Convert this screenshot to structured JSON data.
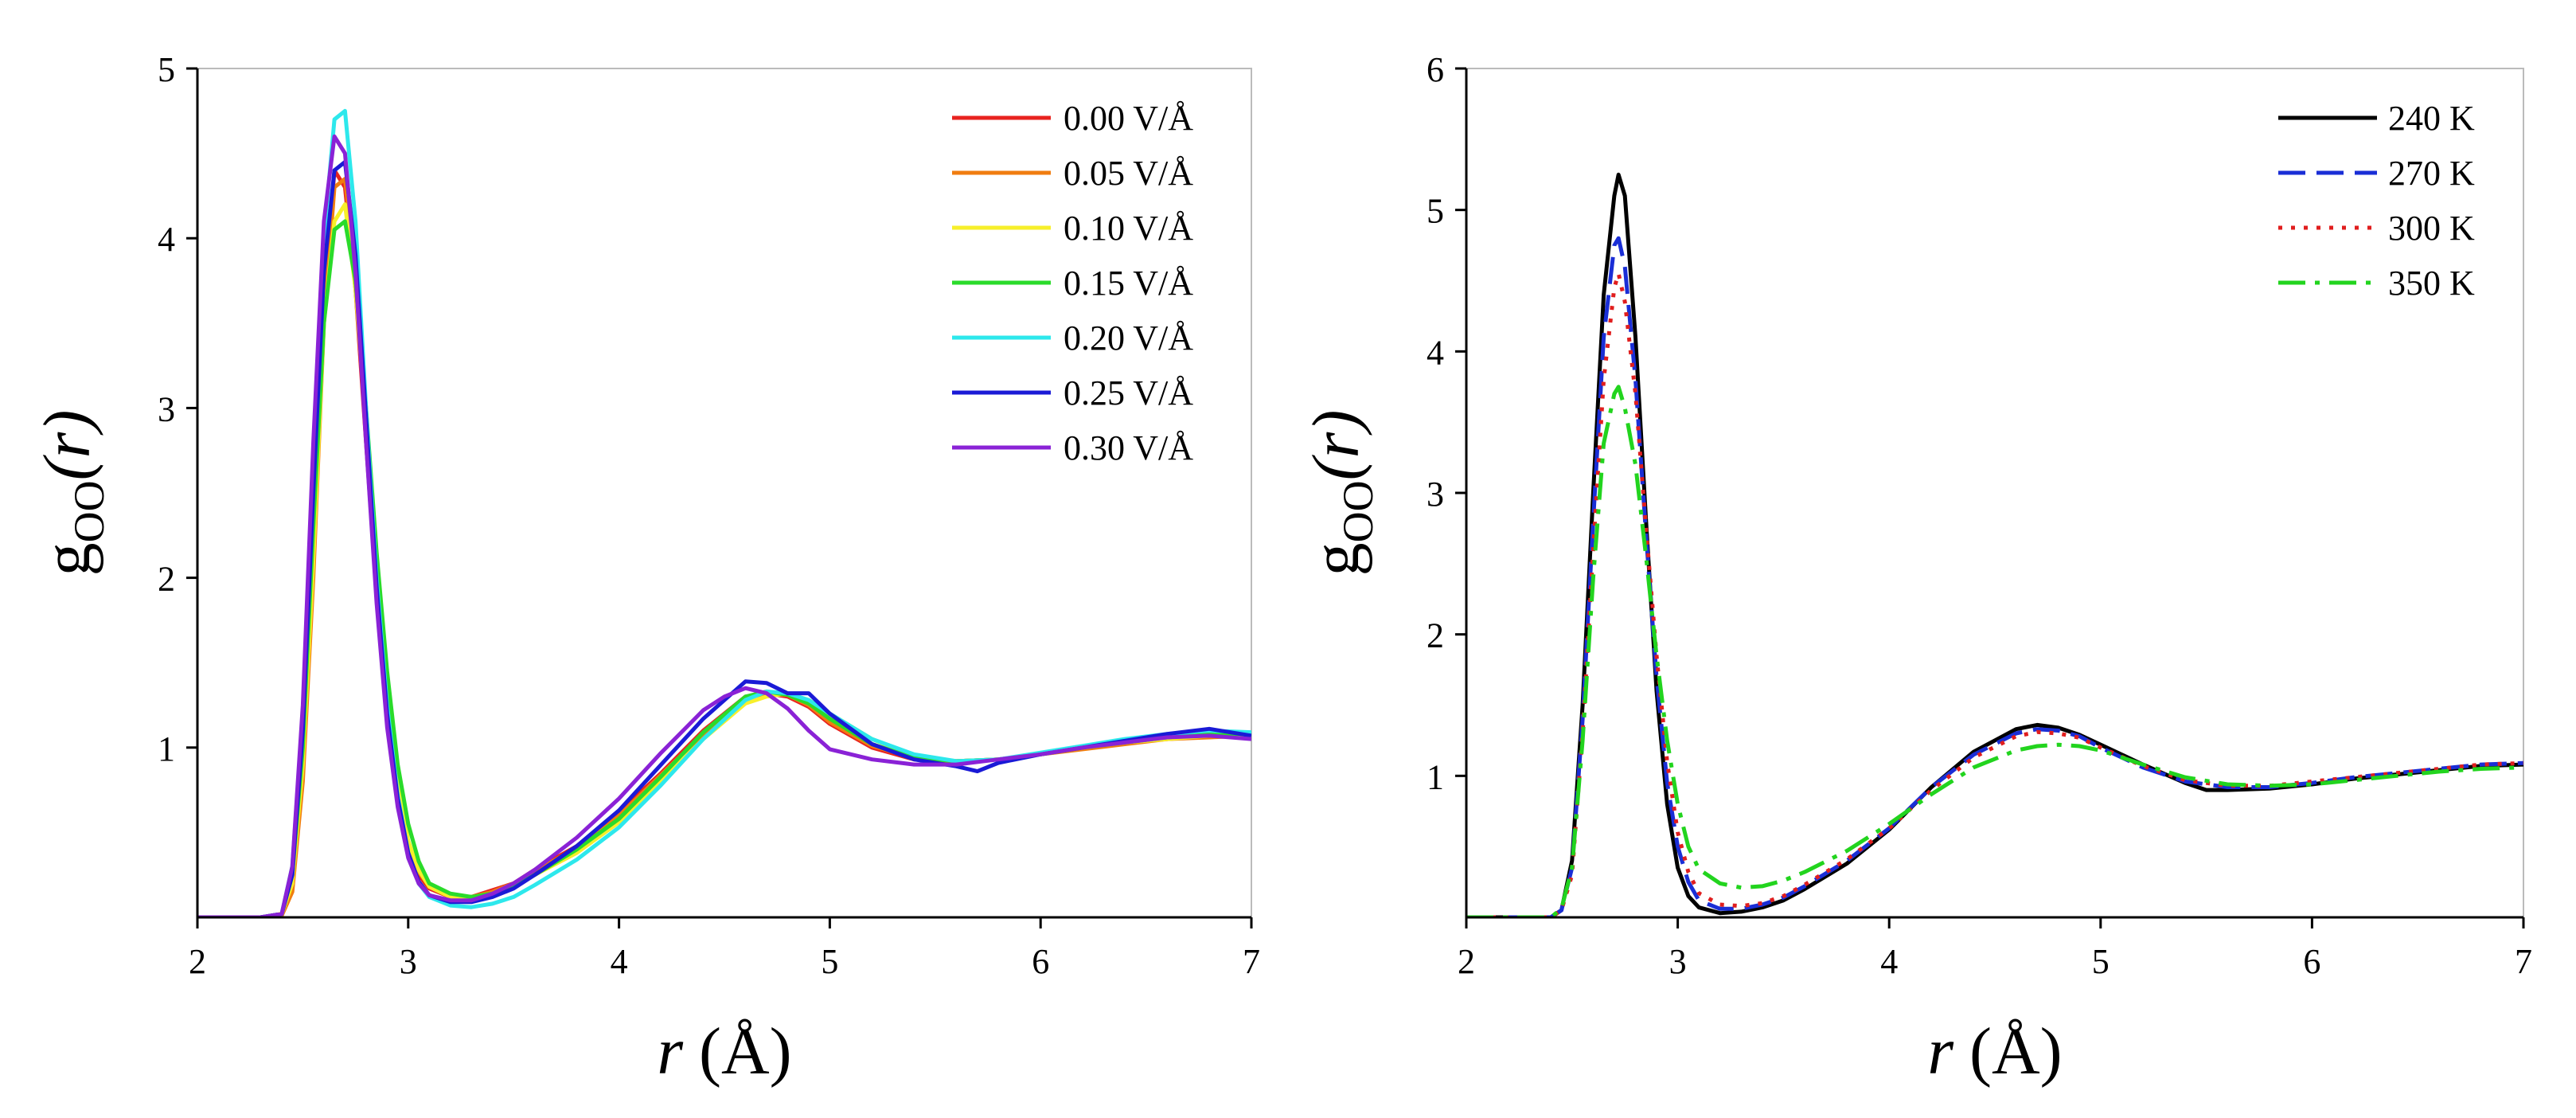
{
  "chart_data": [
    {
      "type": "line",
      "title": "",
      "xlabel": {
        "var": "r",
        "unit": "(Å)"
      },
      "ylabel": {
        "main": "g",
        "sub": "OO",
        "arg": "(r)"
      },
      "xlim": [
        2,
        7
      ],
      "ylim": [
        0,
        5
      ],
      "xticks": [
        2,
        3,
        4,
        5,
        6,
        7
      ],
      "yticks": [
        1,
        2,
        3,
        4,
        5
      ],
      "grid": false,
      "legend_position": "top-right",
      "series": [
        {
          "name": "0.00 V/Å",
          "color": "#e8231f",
          "dash": "solid",
          "x": [
            2.0,
            2.3,
            2.4,
            2.45,
            2.5,
            2.55,
            2.6,
            2.65,
            2.7,
            2.75,
            2.8,
            2.85,
            2.9,
            2.95,
            3.0,
            3.05,
            3.1,
            3.2,
            3.3,
            3.4,
            3.5,
            3.6,
            3.8,
            4.0,
            4.2,
            4.4,
            4.6,
            4.7,
            4.8,
            4.9,
            5.0,
            5.2,
            5.4,
            5.6,
            5.8,
            6.0,
            6.2,
            6.4,
            6.6,
            6.8,
            7.0
          ],
          "y": [
            0,
            0,
            0.02,
            0.2,
            0.9,
            2.2,
            3.6,
            4.4,
            4.3,
            3.7,
            2.8,
            1.9,
            1.2,
            0.7,
            0.4,
            0.25,
            0.17,
            0.12,
            0.12,
            0.16,
            0.2,
            0.28,
            0.42,
            0.62,
            0.85,
            1.1,
            1.3,
            1.32,
            1.3,
            1.24,
            1.14,
            1.0,
            0.93,
            0.92,
            0.93,
            0.96,
            1.0,
            1.03,
            1.05,
            1.07,
            1.06
          ]
        },
        {
          "name": "0.05 V/Å",
          "color": "#f07d10",
          "dash": "solid",
          "x": [
            2.0,
            2.3,
            2.4,
            2.45,
            2.5,
            2.55,
            2.6,
            2.65,
            2.7,
            2.75,
            2.8,
            2.85,
            2.9,
            2.95,
            3.0,
            3.05,
            3.1,
            3.2,
            3.3,
            3.4,
            3.5,
            3.6,
            3.8,
            4.0,
            4.2,
            4.4,
            4.6,
            4.7,
            4.8,
            4.9,
            5.0,
            5.2,
            5.4,
            5.6,
            5.8,
            6.0,
            6.2,
            6.4,
            6.6,
            6.8,
            7.0
          ],
          "y": [
            0,
            0,
            0.01,
            0.15,
            0.8,
            2.0,
            3.5,
            4.3,
            4.35,
            3.8,
            2.9,
            2.0,
            1.25,
            0.75,
            0.42,
            0.27,
            0.18,
            0.13,
            0.12,
            0.15,
            0.2,
            0.27,
            0.41,
            0.6,
            0.84,
            1.08,
            1.29,
            1.32,
            1.31,
            1.25,
            1.15,
            1.01,
            0.94,
            0.92,
            0.93,
            0.96,
            0.99,
            1.02,
            1.05,
            1.06,
            1.07
          ]
        },
        {
          "name": "0.10 V/Å",
          "color": "#f7ef2a",
          "dash": "solid",
          "x": [
            2.0,
            2.3,
            2.4,
            2.45,
            2.5,
            2.55,
            2.6,
            2.65,
            2.7,
            2.75,
            2.8,
            2.85,
            2.9,
            2.95,
            3.0,
            3.05,
            3.1,
            3.2,
            3.3,
            3.4,
            3.5,
            3.6,
            3.8,
            4.0,
            4.2,
            4.4,
            4.6,
            4.7,
            4.8,
            4.9,
            5.0,
            5.2,
            5.4,
            5.6,
            5.8,
            6.0,
            6.2,
            6.4,
            6.6,
            6.8,
            7.0
          ],
          "y": [
            0,
            0,
            0.02,
            0.2,
            0.9,
            2.1,
            3.5,
            4.1,
            4.2,
            3.7,
            2.9,
            2.0,
            1.3,
            0.8,
            0.45,
            0.28,
            0.18,
            0.12,
            0.11,
            0.14,
            0.18,
            0.25,
            0.38,
            0.56,
            0.8,
            1.05,
            1.26,
            1.3,
            1.32,
            1.28,
            1.2,
            1.05,
            0.95,
            0.92,
            0.93,
            0.96,
            1.0,
            1.03,
            1.05,
            1.07,
            1.07
          ]
        },
        {
          "name": "0.15 V/Å",
          "color": "#2adb2a",
          "dash": "solid",
          "x": [
            2.0,
            2.3,
            2.4,
            2.45,
            2.5,
            2.55,
            2.6,
            2.65,
            2.7,
            2.75,
            2.8,
            2.85,
            2.9,
            2.95,
            3.0,
            3.05,
            3.1,
            3.2,
            3.3,
            3.4,
            3.5,
            3.6,
            3.8,
            4.0,
            4.2,
            4.4,
            4.6,
            4.7,
            4.8,
            4.9,
            5.0,
            5.2,
            5.4,
            5.6,
            5.8,
            6.0,
            6.2,
            6.4,
            6.6,
            6.8,
            7.0
          ],
          "y": [
            0,
            0,
            0.02,
            0.25,
            1.0,
            2.3,
            3.5,
            4.05,
            4.1,
            3.75,
            3.0,
            2.15,
            1.45,
            0.9,
            0.55,
            0.33,
            0.2,
            0.14,
            0.12,
            0.14,
            0.18,
            0.25,
            0.4,
            0.58,
            0.83,
            1.09,
            1.3,
            1.33,
            1.31,
            1.26,
            1.17,
            1.02,
            0.94,
            0.92,
            0.93,
            0.96,
            1.0,
            1.03,
            1.06,
            1.08,
            1.08
          ]
        },
        {
          "name": "0.20 V/Å",
          "color": "#2de8ec",
          "dash": "solid",
          "x": [
            2.0,
            2.3,
            2.4,
            2.45,
            2.5,
            2.55,
            2.6,
            2.65,
            2.7,
            2.75,
            2.8,
            2.85,
            2.9,
            2.95,
            3.0,
            3.05,
            3.1,
            3.2,
            3.3,
            3.4,
            3.5,
            3.6,
            3.8,
            4.0,
            4.2,
            4.4,
            4.6,
            4.7,
            4.8,
            4.9,
            5.0,
            5.2,
            5.4,
            5.6,
            5.8,
            6.0,
            6.2,
            6.4,
            6.6,
            6.8,
            7.0
          ],
          "y": [
            0,
            0,
            0.02,
            0.3,
            1.2,
            2.6,
            4.0,
            4.7,
            4.75,
            4.1,
            3.0,
            2.0,
            1.25,
            0.72,
            0.38,
            0.2,
            0.12,
            0.07,
            0.06,
            0.08,
            0.12,
            0.19,
            0.34,
            0.53,
            0.78,
            1.05,
            1.28,
            1.33,
            1.32,
            1.28,
            1.2,
            1.05,
            0.96,
            0.92,
            0.93,
            0.97,
            1.01,
            1.05,
            1.08,
            1.1,
            1.09
          ]
        },
        {
          "name": "0.25 V/Å",
          "color": "#1a1ad6",
          "dash": "solid",
          "x": [
            2.0,
            2.3,
            2.4,
            2.45,
            2.5,
            2.55,
            2.6,
            2.65,
            2.7,
            2.75,
            2.8,
            2.85,
            2.9,
            2.95,
            3.0,
            3.05,
            3.1,
            3.2,
            3.3,
            3.4,
            3.5,
            3.6,
            3.8,
            4.0,
            4.2,
            4.4,
            4.6,
            4.7,
            4.8,
            4.9,
            5.0,
            5.2,
            5.4,
            5.6,
            5.7,
            5.8,
            6.0,
            6.2,
            6.4,
            6.6,
            6.8,
            7.0
          ],
          "y": [
            0,
            0,
            0.02,
            0.25,
            1.1,
            2.5,
            3.8,
            4.4,
            4.45,
            3.9,
            2.95,
            1.95,
            1.2,
            0.7,
            0.38,
            0.21,
            0.13,
            0.09,
            0.09,
            0.12,
            0.17,
            0.25,
            0.42,
            0.63,
            0.9,
            1.17,
            1.39,
            1.38,
            1.32,
            1.32,
            1.2,
            1.02,
            0.93,
            0.89,
            0.86,
            0.91,
            0.96,
            1.0,
            1.04,
            1.08,
            1.11,
            1.07
          ]
        },
        {
          "name": "0.30 V/Å",
          "color": "#8a22d6",
          "dash": "solid",
          "x": [
            2.0,
            2.3,
            2.4,
            2.45,
            2.5,
            2.55,
            2.6,
            2.65,
            2.7,
            2.75,
            2.8,
            2.85,
            2.9,
            2.95,
            3.0,
            3.05,
            3.1,
            3.2,
            3.3,
            3.4,
            3.5,
            3.6,
            3.8,
            4.0,
            4.2,
            4.4,
            4.5,
            4.6,
            4.7,
            4.8,
            4.9,
            5.0,
            5.2,
            5.4,
            5.6,
            5.8,
            6.0,
            6.2,
            6.4,
            6.6,
            6.8,
            7.0
          ],
          "y": [
            0,
            0,
            0.02,
            0.3,
            1.25,
            2.8,
            4.1,
            4.6,
            4.5,
            3.8,
            2.8,
            1.85,
            1.12,
            0.65,
            0.35,
            0.2,
            0.13,
            0.1,
            0.1,
            0.14,
            0.2,
            0.28,
            0.47,
            0.7,
            0.97,
            1.22,
            1.3,
            1.35,
            1.32,
            1.23,
            1.1,
            0.99,
            0.93,
            0.9,
            0.9,
            0.93,
            0.96,
            1.0,
            1.03,
            1.06,
            1.07,
            1.05
          ]
        }
      ]
    },
    {
      "type": "line",
      "title": "",
      "xlabel": {
        "var": "r",
        "unit": "(Å)"
      },
      "ylabel": {
        "main": "g",
        "sub": "OO",
        "arg": "(r)"
      },
      "xlim": [
        2,
        7
      ],
      "ylim": [
        0,
        6
      ],
      "xticks": [
        2,
        3,
        4,
        5,
        6,
        7
      ],
      "yticks": [
        1,
        2,
        3,
        4,
        5,
        6
      ],
      "grid": false,
      "legend_position": "top-right",
      "series": [
        {
          "name": "240 K",
          "color": "#000000",
          "dash": "solid",
          "x": [
            2.0,
            2.4,
            2.45,
            2.5,
            2.55,
            2.6,
            2.65,
            2.7,
            2.72,
            2.75,
            2.8,
            2.85,
            2.9,
            2.95,
            3.0,
            3.05,
            3.1,
            3.2,
            3.3,
            3.4,
            3.5,
            3.6,
            3.8,
            4.0,
            4.2,
            4.4,
            4.6,
            4.7,
            4.8,
            4.9,
            5.0,
            5.2,
            5.4,
            5.5,
            5.6,
            5.8,
            6.0,
            6.2,
            6.4,
            6.6,
            6.8,
            7.0
          ],
          "y": [
            0,
            0,
            0.05,
            0.4,
            1.5,
            3.0,
            4.4,
            5.1,
            5.25,
            5.1,
            4.1,
            2.8,
            1.6,
            0.8,
            0.35,
            0.15,
            0.07,
            0.03,
            0.04,
            0.07,
            0.12,
            0.2,
            0.38,
            0.62,
            0.92,
            1.17,
            1.33,
            1.36,
            1.34,
            1.29,
            1.22,
            1.08,
            0.95,
            0.9,
            0.9,
            0.91,
            0.94,
            0.98,
            1.01,
            1.04,
            1.07,
            1.08
          ]
        },
        {
          "name": "270 K",
          "color": "#1a2ed6",
          "dash": "dashed",
          "x": [
            2.0,
            2.4,
            2.45,
            2.5,
            2.55,
            2.6,
            2.65,
            2.7,
            2.72,
            2.75,
            2.8,
            2.85,
            2.9,
            2.95,
            3.0,
            3.05,
            3.1,
            3.2,
            3.3,
            3.4,
            3.5,
            3.6,
            3.8,
            4.0,
            4.2,
            4.4,
            4.6,
            4.7,
            4.8,
            4.9,
            5.0,
            5.2,
            5.4,
            5.6,
            5.8,
            6.0,
            6.2,
            6.4,
            6.6,
            6.8,
            7.0
          ],
          "y": [
            0,
            0,
            0.05,
            0.35,
            1.4,
            2.8,
            4.1,
            4.75,
            4.8,
            4.6,
            3.8,
            2.7,
            1.7,
            0.95,
            0.5,
            0.25,
            0.12,
            0.06,
            0.06,
            0.09,
            0.14,
            0.22,
            0.4,
            0.63,
            0.92,
            1.15,
            1.3,
            1.33,
            1.32,
            1.28,
            1.2,
            1.06,
            0.96,
            0.92,
            0.92,
            0.95,
            0.99,
            1.02,
            1.05,
            1.08,
            1.09
          ]
        },
        {
          "name": "300 K",
          "color": "#e01e1e",
          "dash": "dotted",
          "x": [
            2.0,
            2.4,
            2.45,
            2.5,
            2.55,
            2.6,
            2.65,
            2.7,
            2.72,
            2.75,
            2.8,
            2.85,
            2.9,
            2.95,
            3.0,
            3.05,
            3.1,
            3.2,
            3.3,
            3.4,
            3.5,
            3.6,
            3.8,
            4.0,
            4.2,
            4.4,
            4.6,
            4.7,
            4.8,
            4.9,
            5.0,
            5.2,
            5.4,
            5.6,
            5.8,
            6.0,
            6.2,
            6.4,
            6.6,
            6.8,
            7.0
          ],
          "y": [
            0,
            0,
            0.05,
            0.3,
            1.3,
            2.6,
            3.8,
            4.45,
            4.55,
            4.35,
            3.7,
            2.75,
            1.85,
            1.1,
            0.6,
            0.32,
            0.17,
            0.09,
            0.08,
            0.1,
            0.15,
            0.23,
            0.41,
            0.63,
            0.9,
            1.13,
            1.28,
            1.31,
            1.3,
            1.27,
            1.2,
            1.07,
            0.97,
            0.93,
            0.93,
            0.96,
            0.99,
            1.02,
            1.05,
            1.08,
            1.09
          ]
        },
        {
          "name": "350 K",
          "color": "#22d41e",
          "dash": "dashdot",
          "x": [
            2.0,
            2.4,
            2.45,
            2.5,
            2.55,
            2.6,
            2.65,
            2.7,
            2.72,
            2.75,
            2.8,
            2.85,
            2.9,
            2.95,
            3.0,
            3.05,
            3.1,
            3.2,
            3.3,
            3.4,
            3.5,
            3.6,
            3.8,
            4.0,
            4.2,
            4.4,
            4.6,
            4.7,
            4.8,
            4.9,
            5.0,
            5.2,
            5.4,
            5.6,
            5.8,
            6.0,
            6.2,
            6.4,
            6.6,
            6.8,
            7.0
          ],
          "y": [
            0,
            0,
            0.06,
            0.35,
            1.25,
            2.4,
            3.35,
            3.7,
            3.75,
            3.6,
            3.2,
            2.55,
            1.85,
            1.25,
            0.8,
            0.5,
            0.34,
            0.24,
            0.21,
            0.22,
            0.26,
            0.32,
            0.47,
            0.66,
            0.87,
            1.06,
            1.18,
            1.21,
            1.22,
            1.21,
            1.18,
            1.08,
            0.99,
            0.94,
            0.93,
            0.94,
            0.97,
            1.0,
            1.03,
            1.05,
            1.06
          ]
        }
      ]
    }
  ]
}
